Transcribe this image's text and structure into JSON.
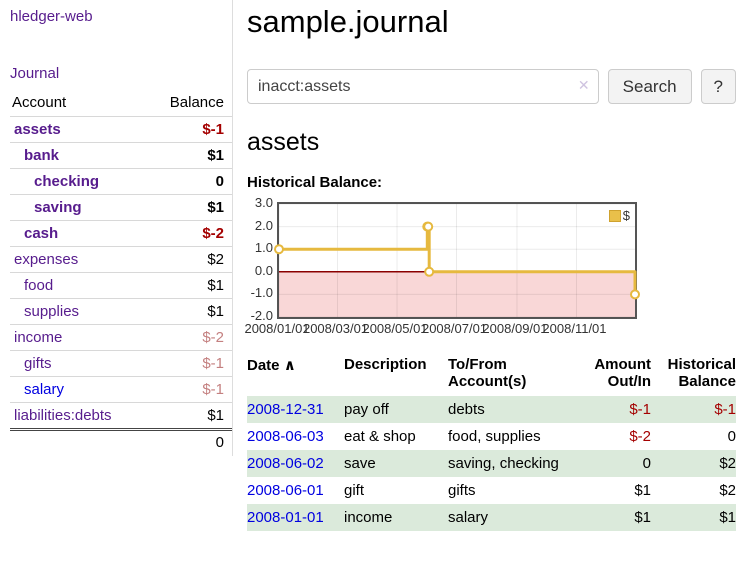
{
  "app": {
    "brand": "hledger-web",
    "nav_journal": "Journal"
  },
  "colors": {
    "link_purple": "#571c8d",
    "link_blue": "#0000e0",
    "negative_strong": "#a40000",
    "negative_soft": "#c48080",
    "row_stripe_green": "#dbeadb",
    "button_bg": "#f3f3f3"
  },
  "sidebar": {
    "header": {
      "account": "Account",
      "balance": "Balance"
    },
    "accounts": [
      {
        "name": "assets",
        "balance": "$-1"
      },
      {
        "name": "bank",
        "balance": "$1"
      },
      {
        "name": "checking",
        "balance": "0"
      },
      {
        "name": "saving",
        "balance": "$1"
      },
      {
        "name": "cash",
        "balance": "$-2"
      },
      {
        "name": "expenses",
        "balance": "$2"
      },
      {
        "name": "food",
        "balance": "$1"
      },
      {
        "name": "supplies",
        "balance": "$1"
      },
      {
        "name": "income",
        "balance": "$-2"
      },
      {
        "name": "gifts",
        "balance": "$-1"
      },
      {
        "name": "salary",
        "balance": "$-1"
      },
      {
        "name": "liabilities:debts",
        "balance": "$1"
      }
    ],
    "total": "0"
  },
  "main": {
    "title": "sample.journal",
    "search": {
      "value": "inacct:assets",
      "clear_icon": "✕",
      "button": "Search",
      "help": "?"
    },
    "account_heading": "assets",
    "chart_label": "Historical Balance:"
  },
  "register": {
    "headers": {
      "date": "Date",
      "sort_icon": "∧",
      "description": "Description",
      "tofrom": "To/From Account(s)",
      "amount": "Amount Out/In",
      "balance": "Historical Balance"
    },
    "rows": [
      {
        "date": "2008-12-31",
        "description": "pay off",
        "accounts": "debts",
        "amount": "$-1",
        "balance": "$-1"
      },
      {
        "date": "2008-06-03",
        "description": "eat & shop",
        "accounts": "food, supplies",
        "amount": "$-2",
        "balance": "0"
      },
      {
        "date": "2008-06-02",
        "description": "save",
        "accounts": "saving, checking",
        "amount": "0",
        "balance": "$2"
      },
      {
        "date": "2008-06-01",
        "description": "gift",
        "accounts": "gifts",
        "amount": "$1",
        "balance": "$2"
      },
      {
        "date": "2008-01-01",
        "description": "income",
        "accounts": "salary",
        "amount": "$1",
        "balance": "$1"
      }
    ]
  },
  "chart_data": {
    "type": "line",
    "title": "Historical Balance",
    "step": true,
    "series": [
      {
        "name": "$",
        "points": [
          {
            "date": "2008-01-01",
            "value": 1
          },
          {
            "date": "2008-06-01",
            "value": 2
          },
          {
            "date": "2008-06-02",
            "value": 2
          },
          {
            "date": "2008-06-03",
            "value": 0
          },
          {
            "date": "2008-12-31",
            "value": -1
          }
        ]
      }
    ],
    "xlim": [
      "2008-01-01",
      "2008-12-31"
    ],
    "ylim": [
      -2,
      3
    ],
    "x_ticks": [
      {
        "date": "2008-01-01",
        "label": "2008/01/01"
      },
      {
        "date": "2008-03-01",
        "label": "2008/03/01"
      },
      {
        "date": "2008-05-01",
        "label": "2008/05/01"
      },
      {
        "date": "2008-07-01",
        "label": "2008/07/01"
      },
      {
        "date": "2008-09-01",
        "label": "2008/09/01"
      },
      {
        "date": "2008-11-01",
        "label": "2008/11/01"
      }
    ],
    "y_ticks": [
      {
        "value": 3,
        "label": "3.0"
      },
      {
        "value": 2,
        "label": "2.0"
      },
      {
        "value": 1,
        "label": "1.0"
      },
      {
        "value": 0,
        "label": "0.0"
      },
      {
        "value": -1,
        "label": "-1.0"
      },
      {
        "value": -2,
        "label": "-2.0"
      }
    ],
    "legend": {
      "label": "$",
      "position": "top-right"
    },
    "grid": true,
    "colors": {
      "line": "#e6b93f",
      "marker_fill": "#ffffff",
      "zero_line": "#8b0000",
      "negative_region": "#f9d7d7",
      "grid": "rgba(0,0,0,0.08)"
    }
  }
}
